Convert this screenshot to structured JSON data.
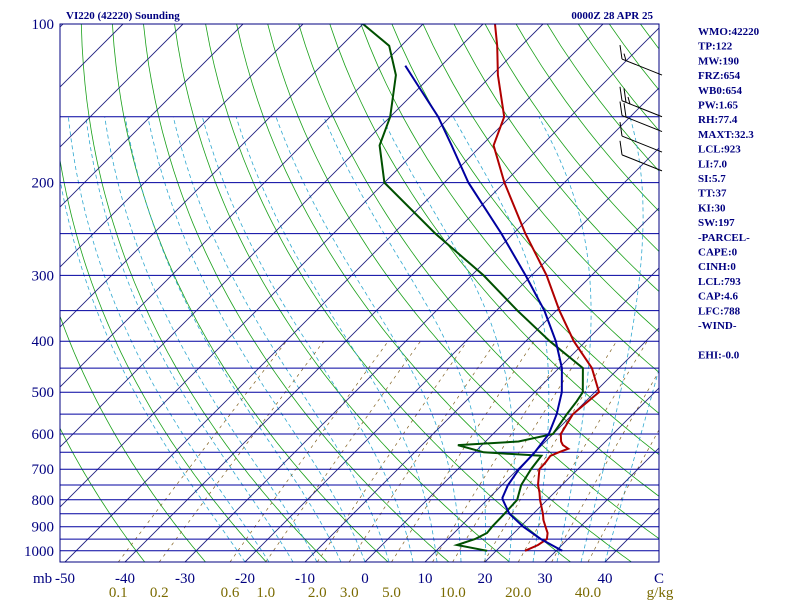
{
  "header": {
    "title_left": "VI220 (42220) Sounding",
    "title_right": "0000Z 28 APR 25"
  },
  "chart_data": {
    "type": "skew-t",
    "pressure_unit_label": "mb",
    "temperature_unit_label": "C",
    "mixing_ratio_unit_label": "g/kg",
    "pressure_levels": [
      100,
      150,
      200,
      250,
      300,
      350,
      400,
      450,
      500,
      550,
      600,
      650,
      700,
      750,
      800,
      850,
      900,
      950,
      1000
    ],
    "pressure_tick_labels": [
      "100",
      "200",
      "300",
      "400",
      "500",
      "600",
      "700",
      "800",
      "900",
      "1000"
    ],
    "temperature_ticks": [
      "-50",
      "-40",
      "-30",
      "-20",
      "-10",
      "0",
      "10",
      "20",
      "30",
      "40",
      "C"
    ],
    "mixing_ratio_labels": [
      "0.1",
      "0.2",
      "0.6",
      "1.0",
      "2.0",
      "3.0",
      "5.0",
      "10.0",
      "20.0",
      "40.0",
      "g/kg"
    ],
    "series": [
      {
        "name": "temperature",
        "color": "#b00000",
        "points": [
          [
            1000,
            24.8
          ],
          [
            975,
            26
          ],
          [
            950,
            26.5
          ],
          [
            925,
            25.6
          ],
          [
            900,
            24.2
          ],
          [
            875,
            22.8
          ],
          [
            850,
            21.6
          ],
          [
            800,
            18.8
          ],
          [
            775,
            17.5
          ],
          [
            750,
            16
          ],
          [
            700,
            13.6
          ],
          [
            680,
            13.5
          ],
          [
            660,
            13.2
          ],
          [
            650,
            14
          ],
          [
            640,
            15
          ],
          [
            630,
            13.5
          ],
          [
            620,
            12.6
          ],
          [
            600,
            11.3
          ],
          [
            550,
            10
          ],
          [
            500,
            10.7
          ],
          [
            450,
            5.5
          ],
          [
            400,
            -2
          ],
          [
            350,
            -9.5
          ],
          [
            300,
            -17.5
          ],
          [
            250,
            -28
          ],
          [
            200,
            -40
          ],
          [
            170,
            -48
          ],
          [
            150,
            -51
          ],
          [
            125,
            -59
          ],
          [
            110,
            -64
          ],
          [
            100,
            -68
          ]
        ]
      },
      {
        "name": "dewpoint",
        "color": "#005000",
        "points": [
          [
            1000,
            18.5
          ],
          [
            975,
            12.5
          ],
          [
            950,
            14.5
          ],
          [
            925,
            15.5
          ],
          [
            900,
            15.3
          ],
          [
            850,
            15.2
          ],
          [
            800,
            15
          ],
          [
            750,
            13.2
          ],
          [
            700,
            12.2
          ],
          [
            660,
            11.7
          ],
          [
            650,
            1.5
          ],
          [
            630,
            -4
          ],
          [
            620,
            5.5
          ],
          [
            600,
            10
          ],
          [
            550,
            9
          ],
          [
            520,
            8.5
          ],
          [
            500,
            8
          ],
          [
            450,
            4
          ],
          [
            400,
            -6
          ],
          [
            350,
            -16.5
          ],
          [
            300,
            -28
          ],
          [
            250,
            -43
          ],
          [
            200,
            -60
          ],
          [
            170,
            -67
          ],
          [
            150,
            -70
          ],
          [
            125,
            -76
          ],
          [
            110,
            -82
          ],
          [
            100,
            -90
          ]
        ]
      },
      {
        "name": "parcel",
        "color": "#0000a0",
        "points": [
          [
            1000,
            31
          ],
          [
            950,
            25.5
          ],
          [
            900,
            20.5
          ],
          [
            850,
            16
          ],
          [
            800,
            12.6
          ],
          [
            793,
            12.2
          ],
          [
            750,
            11
          ],
          [
            700,
            10.2
          ],
          [
            650,
            10
          ],
          [
            600,
            9.3
          ],
          [
            550,
            7.3
          ],
          [
            500,
            4.5
          ],
          [
            450,
            0.5
          ],
          [
            400,
            -5
          ],
          [
            350,
            -12
          ],
          [
            300,
            -21
          ],
          [
            250,
            -32
          ],
          [
            200,
            -46
          ],
          [
            170,
            -55
          ],
          [
            150,
            -62
          ],
          [
            130,
            -71
          ],
          [
            120,
            -76
          ]
        ]
      }
    ],
    "wind_barbs": [
      {
        "pressure": 125,
        "speed_kt": 15
      },
      {
        "pressure": 150,
        "speed_kt": 25
      },
      {
        "pressure": 160,
        "speed_kt": 20
      },
      {
        "pressure": 175,
        "speed_kt": 10
      },
      {
        "pressure": 190,
        "speed_kt": 10
      }
    ],
    "indices": [
      "WMO:42220",
      "TP:122",
      "MW:190",
      "FRZ:654",
      "WB0:654",
      "PW:1.65",
      "RH:77.4",
      "MAXT:32.3",
      "LCL:923",
      "LI:7.0",
      "SI:5.7",
      "TT:37",
      "KI:30",
      "SW:197",
      "-PARCEL-",
      "CAPE:0",
      "CINH:0",
      "LCL:793",
      "CAP:4.6",
      "LFC:788",
      "-WIND-",
      "",
      "EHI:-0.0"
    ]
  },
  "colors": {
    "frame": "#000080",
    "isobar": "#0000a0",
    "isotherm": "#202080",
    "dry_adiabat": "#1aa01a",
    "moist_adiabat": "#30a8d0",
    "mixing_ratio": "#806020",
    "label": "#000080",
    "mixing_label": "#7a6a00"
  }
}
